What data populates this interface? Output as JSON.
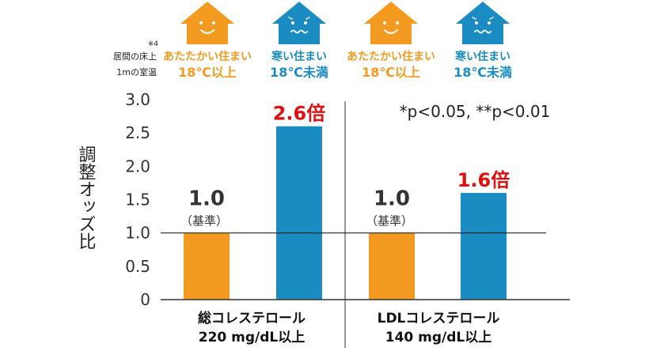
{
  "chart_data": {
    "type": "bar",
    "ylabel": "調整オッズ比",
    "yticks": [
      "0",
      "0.5",
      "1.0",
      "1.5",
      "2.0",
      "2.5",
      "3.0"
    ],
    "ylim": [
      0,
      3.0
    ],
    "reference_line": 1.0,
    "annotation": "*p<0.05, **p<0.01",
    "row_label": {
      "line1": "居間の床上",
      "line2": "1mの室温",
      "note_mark": "※4"
    },
    "header_groups": [
      {
        "line1": "あたたかい住まい",
        "line2": "18℃以上",
        "color": "#f39a21",
        "icon": "warm-house-icon"
      },
      {
        "line1": "寒い住まい",
        "line2": "18℃未満",
        "color": "#1a8cc2",
        "icon": "cold-house-icon"
      },
      {
        "line1": "あたたかい住まい",
        "line2": "18℃以上",
        "color": "#f39a21",
        "icon": "warm-house-icon"
      },
      {
        "line1": "寒い住まい",
        "line2": "18℃未満",
        "color": "#1a8cc2",
        "icon": "cold-house-icon"
      }
    ],
    "groups": [
      {
        "label_line1": "総コレステロール",
        "label_line2": "220 mg/dL以上",
        "bars": [
          {
            "value": 1.0,
            "label": "1.0",
            "sublabel": "（基準）",
            "color": "#f39a21"
          },
          {
            "value": 2.6,
            "label": "2.6倍",
            "color": "#1a8cc2"
          }
        ]
      },
      {
        "label_line1": "LDLコレステロール",
        "label_line2": "140 mg/dL以上",
        "bars": [
          {
            "value": 1.0,
            "label": "1.0",
            "sublabel": "（基準）",
            "color": "#f39a21"
          },
          {
            "value": 1.6,
            "label": "1.6倍",
            "color": "#1a8cc2"
          }
        ]
      }
    ]
  }
}
